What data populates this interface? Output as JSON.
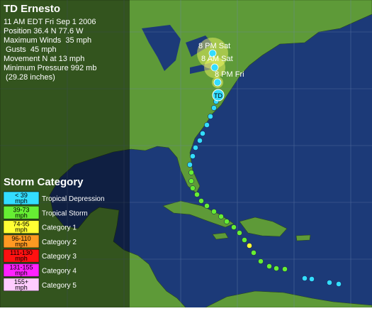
{
  "header": {
    "title": "TD Ernesto",
    "info": [
      "11 AM EDT Fri Sep 1 2006",
      "Position 36.4 N 77.6 W",
      "Maximum Winds  35 mph",
      " Gusts  45 mph",
      "Movement N at 13 mph",
      "Minimum Pressure 992 mb",
      " (29.28 inches)"
    ]
  },
  "forecast_labels": [
    "8 PM Sat",
    "8 AM Sat",
    "8 PM Fri"
  ],
  "current_marker": "TD",
  "legend": {
    "title": "Storm Category",
    "items": [
      {
        "range": [
          "< 39",
          "mph"
        ],
        "name": "Tropical Depression",
        "color": "#33ddff"
      },
      {
        "range": [
          "39-73",
          "mph"
        ],
        "name": "Tropical Storm",
        "color": "#66ee33"
      },
      {
        "range": [
          "74-95",
          "mph"
        ],
        "name": "Category 1",
        "color": "#ffff33"
      },
      {
        "range": [
          "96-110",
          "mph"
        ],
        "name": "Category 2",
        "color": "#ff9922"
      },
      {
        "range": [
          "111-130",
          "mph"
        ],
        "name": "Category 3",
        "color": "#ff1111"
      },
      {
        "range": [
          "131-155",
          "mph"
        ],
        "name": "Category 4",
        "color": "#ff22ff"
      },
      {
        "range": [
          "155+",
          "mph"
        ],
        "name": "Category 5",
        "color": "#ffccff"
      }
    ]
  }
}
